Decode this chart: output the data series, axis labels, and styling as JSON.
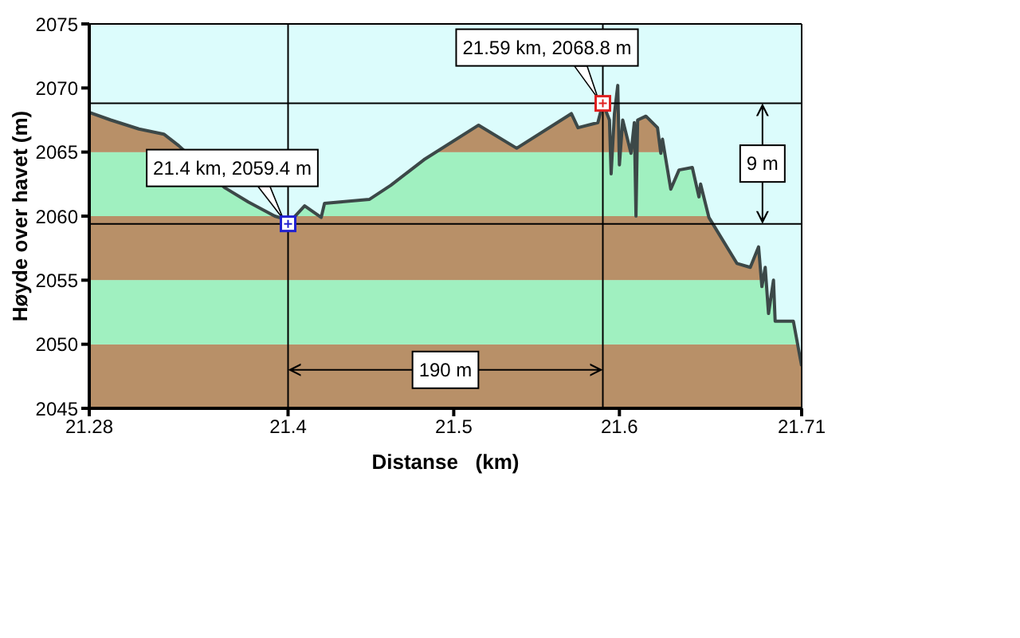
{
  "chart_data": {
    "type": "area",
    "xlabel": "Distanse   (km)",
    "ylabel": "Høyde over havet (m)",
    "xlim": [
      21.28,
      21.71
    ],
    "xticks": [
      21.28,
      21.4,
      21.5,
      21.6,
      21.71
    ],
    "ylim": [
      2045,
      2075
    ],
    "yticks": [
      2045,
      2050,
      2055,
      2060,
      2065,
      2070,
      2075
    ],
    "series": [
      {
        "color": "#3c4848",
        "x": [
          21.28,
          21.293,
          21.31,
          21.325,
          21.334,
          21.362,
          21.376,
          21.392,
          21.397,
          21.4,
          21.41,
          21.42,
          21.422,
          21.449,
          21.462,
          21.472,
          21.482,
          21.515,
          21.538,
          21.571,
          21.575,
          21.587,
          21.59,
          21.594,
          21.595,
          21.597,
          21.599,
          21.6,
          21.602,
          21.607,
          21.609,
          21.61,
          21.611,
          21.616,
          21.623,
          21.625,
          21.626,
          21.631,
          21.636,
          21.644,
          21.648,
          21.649,
          21.654,
          21.671,
          21.679,
          21.684,
          21.686,
          21.688,
          21.69,
          21.693,
          21.694,
          21.705,
          21.71
        ],
        "values": [
          2068.1,
          2067.5,
          2066.8,
          2066.4,
          2065.5,
          2062.2,
          2061.1,
          2060,
          2059.8,
          2059.4,
          2060.8,
          2059.9,
          2061,
          2061.3,
          2062.4,
          2063.4,
          2064.4,
          2067.1,
          2065.3,
          2068,
          2066.9,
          2067.3,
          2068.8,
          2067.5,
          2063.3,
          2068,
          2070.2,
          2064,
          2067.5,
          2064.9,
          2067.3,
          2060,
          2067.5,
          2067.8,
          2066.9,
          2064.9,
          2066,
          2062.1,
          2063.6,
          2063.8,
          2061.5,
          2062.5,
          2059.9,
          2056.3,
          2056,
          2057.6,
          2054.5,
          2056,
          2052.4,
          2055,
          2051.8,
          2051.8,
          2048.3
        ]
      },
      {
        "type": "scatter",
        "marker": "square",
        "colors": [
          "#2020d0",
          "#e02020"
        ],
        "x": [
          21.4,
          21.59
        ],
        "values": [
          2059.4,
          2068.8
        ]
      }
    ],
    "bands": [
      {
        "axis": "y",
        "from": 2045,
        "to": 2050,
        "color": "#b89068"
      },
      {
        "axis": "y",
        "from": 2050,
        "to": 2055,
        "color": "#a0f0c0"
      },
      {
        "axis": "y",
        "from": 2055,
        "to": 2060,
        "color": "#b89068"
      },
      {
        "axis": "y",
        "from": 2060,
        "to": 2065,
        "color": "#a0f0c0"
      },
      {
        "axis": "y",
        "from": 2065,
        "to": 2070,
        "color": "#b89068"
      }
    ],
    "ref_lines": [
      {
        "axis": "x",
        "value": 21.4,
        "color": "#000000"
      },
      {
        "axis": "x",
        "value": 21.59,
        "color": "#000000"
      },
      {
        "axis": "y",
        "value": 2059.4,
        "color": "#000000"
      },
      {
        "axis": "y",
        "value": 2068.8,
        "color": "#000000"
      }
    ],
    "annotations": [
      {
        "text": "21.4 km, 2059.4 m",
        "x": 21.4,
        "y": 2059.4
      },
      {
        "text": "21.59 km, 2068.8 m",
        "x": 21.59,
        "y": 2068.8
      },
      "190 m",
      "9 m"
    ]
  }
}
